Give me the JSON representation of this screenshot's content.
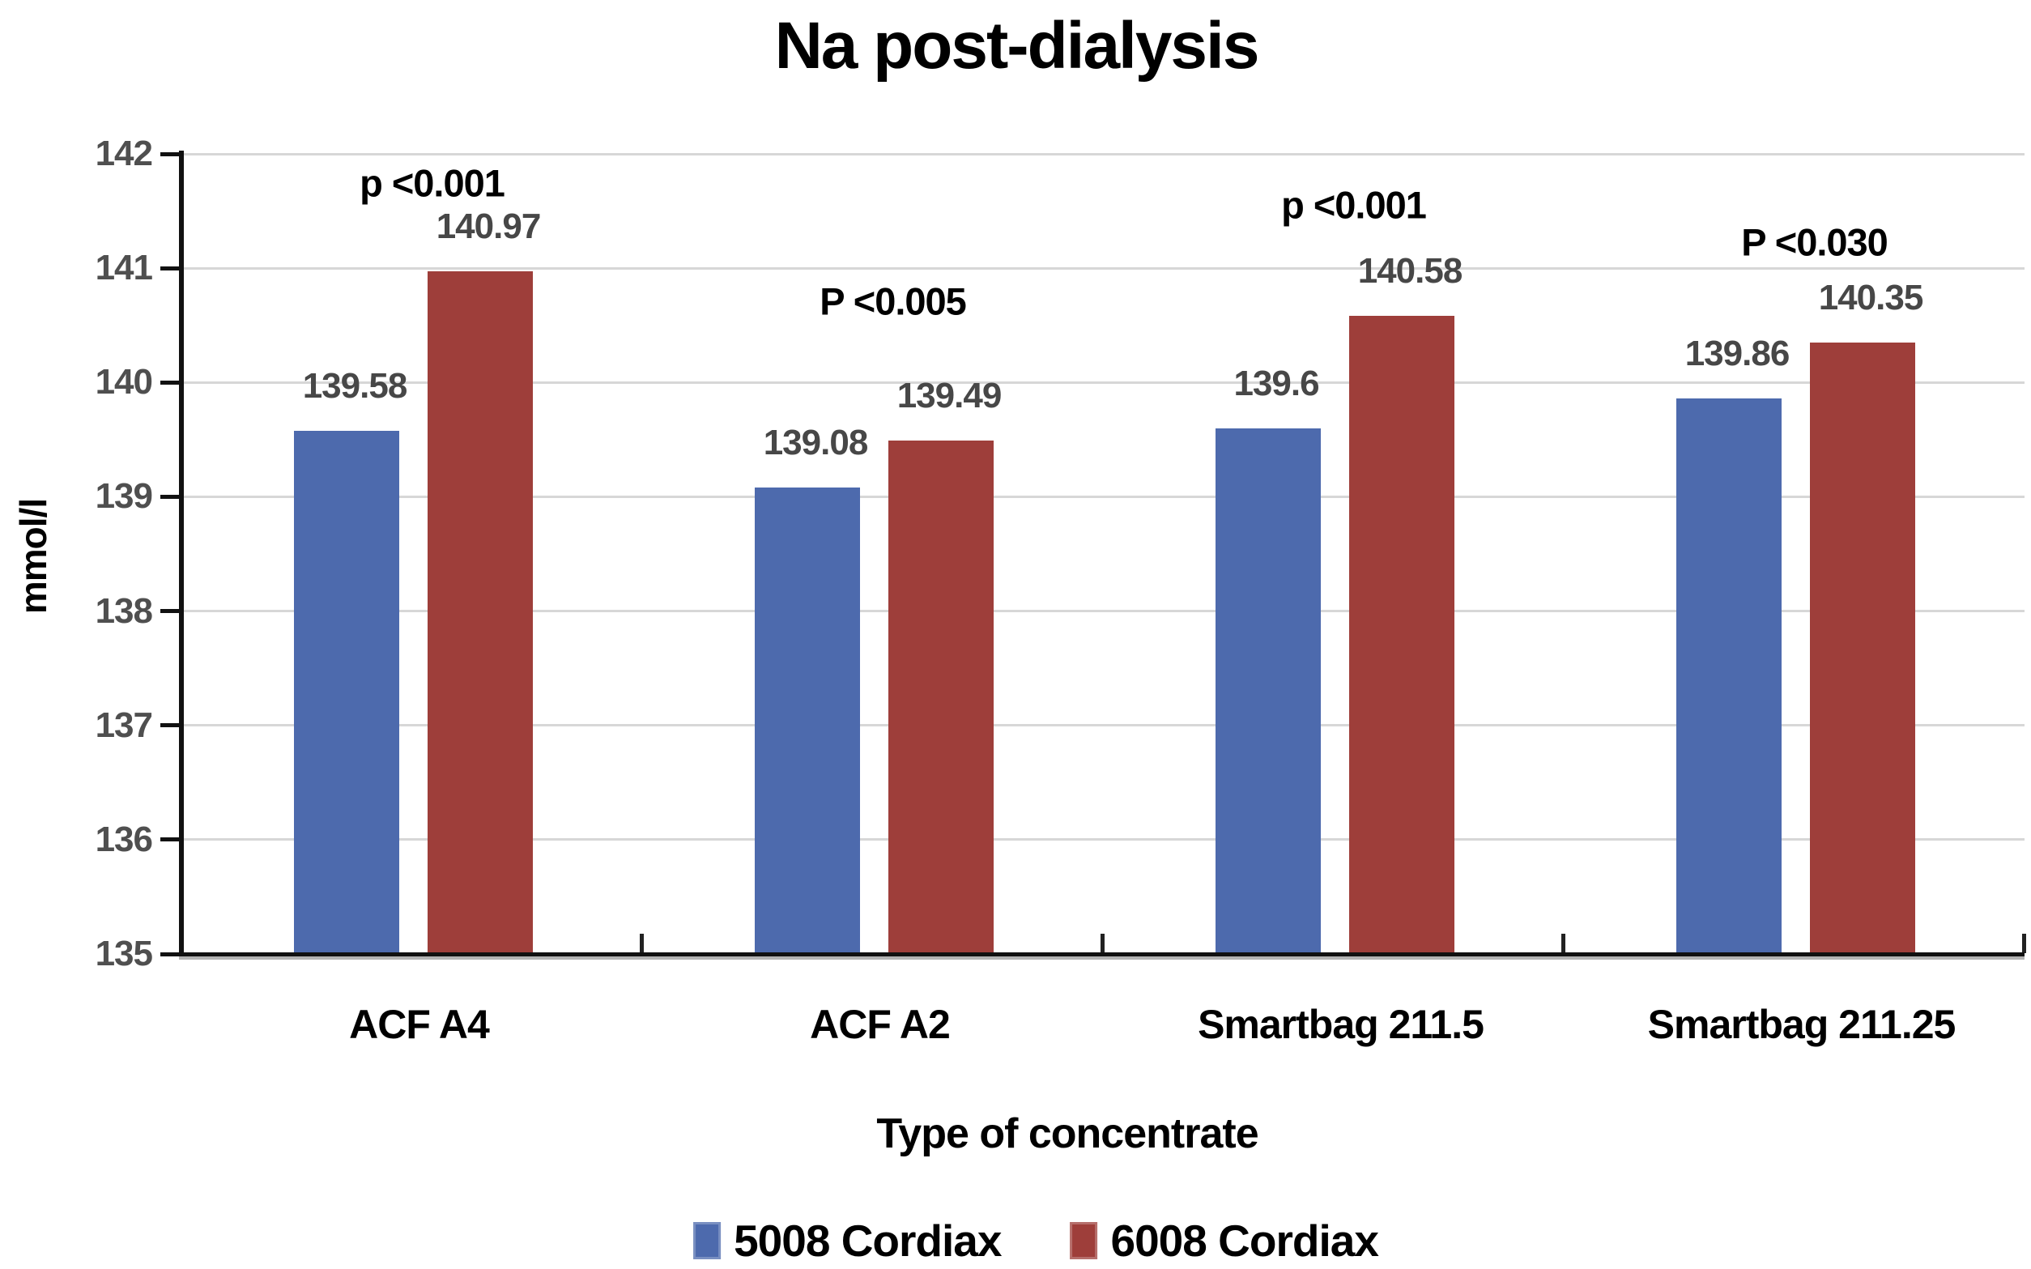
{
  "chart_data": {
    "type": "bar",
    "title": "Na post-dialysis",
    "ylabel": "mmol/l",
    "xlabel": "Type of concentrate",
    "ylim": [
      135,
      142
    ],
    "ytick_step": 1,
    "ytick_labels": [
      "135",
      "136",
      "137",
      "138",
      "139",
      "140",
      "141",
      "142"
    ],
    "grid": true,
    "legend_position": "bottom",
    "categories": [
      "ACF A4",
      "ACF A2",
      "Smartbag 211.5",
      "Smartbag 211.25"
    ],
    "series": [
      {
        "name": "5008 Cordiax",
        "color": "#4D6AAD",
        "values": [
          139.58,
          139.08,
          139.6,
          139.86
        ],
        "value_labels": [
          "139.58",
          "139.08",
          "139.6",
          "139.86"
        ]
      },
      {
        "name": "6008 Cordiax",
        "color": "#9E3E3A",
        "values": [
          140.97,
          139.49,
          140.58,
          140.35
        ],
        "value_labels": [
          "140.97",
          "139.49",
          "140.58",
          "140.35"
        ]
      }
    ],
    "annotations": [
      "p <0.001",
      "P <0.005",
      "p <0.001",
      "P <0.030"
    ]
  },
  "colors": {
    "background": "#ffffff",
    "gridline": "#d7d7d7",
    "axis": "#111111",
    "tick_label": "#4f4f4f",
    "value_label": "#474747",
    "series_5008": "#4D6AAD",
    "series_6008": "#9E3E3A"
  }
}
